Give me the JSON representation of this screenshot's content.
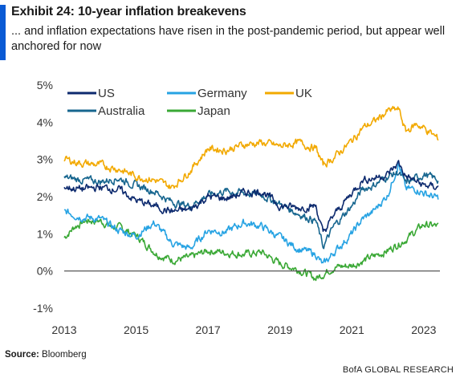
{
  "title": "Exhibit 24: 10-year inflation breakevens",
  "subtitle": "... and inflation expectations have risen in the post-pandemic period, but appear well anchored for now",
  "source_label": "Source:",
  "source_text": "Bloomberg",
  "brand": "BofA GLOBAL RESEARCH",
  "chart_data": {
    "type": "line",
    "title": "",
    "xlabel": "",
    "ylabel": "",
    "xlim": [
      2013.0,
      2023.45
    ],
    "ylim": [
      -1,
      5
    ],
    "y_ticks": [
      -1,
      0,
      1,
      2,
      3,
      4,
      5
    ],
    "y_tick_labels": [
      "-1%",
      "0%",
      "1%",
      "2%",
      "3%",
      "4%",
      "5%"
    ],
    "x_ticks": [
      2013,
      2015,
      2017,
      2019,
      2021,
      2023
    ],
    "x_tick_labels": [
      "2013",
      "2015",
      "2017",
      "2019",
      "2021",
      "2023"
    ],
    "grid": false,
    "legend_position": "top-left",
    "series": [
      {
        "name": "US",
        "color": "#0d2a6e",
        "x": [
          2013.0,
          2013.5,
          2014.0,
          2014.5,
          2015.0,
          2015.5,
          2016.0,
          2016.5,
          2017.0,
          2017.5,
          2018.0,
          2018.5,
          2019.0,
          2019.5,
          2020.0,
          2020.2,
          2020.5,
          2021.0,
          2021.3,
          2021.6,
          2022.0,
          2022.3,
          2022.5,
          2022.8,
          2023.0,
          2023.4
        ],
        "y": [
          2.25,
          2.2,
          2.25,
          2.2,
          1.9,
          1.75,
          1.6,
          1.65,
          2.0,
          1.95,
          2.1,
          2.15,
          1.75,
          1.7,
          1.75,
          1.0,
          1.5,
          2.1,
          2.45,
          2.5,
          2.6,
          2.9,
          2.55,
          2.4,
          2.3,
          2.25
        ]
      },
      {
        "name": "Germany",
        "color": "#27a3e3",
        "x": [
          2013.0,
          2013.5,
          2014.0,
          2014.5,
          2015.0,
          2015.5,
          2016.0,
          2016.5,
          2017.0,
          2017.5,
          2018.0,
          2018.5,
          2019.0,
          2019.5,
          2020.0,
          2020.2,
          2020.5,
          2021.0,
          2021.3,
          2021.6,
          2022.0,
          2022.3,
          2022.5,
          2022.8,
          2023.0,
          2023.4
        ],
        "y": [
          1.6,
          1.45,
          1.4,
          1.1,
          0.95,
          1.3,
          0.75,
          0.6,
          1.1,
          1.05,
          1.3,
          1.2,
          0.9,
          0.6,
          0.45,
          0.15,
          0.5,
          1.0,
          1.4,
          1.6,
          2.05,
          2.9,
          2.2,
          2.2,
          2.1,
          1.95
        ]
      },
      {
        "name": "UK",
        "color": "#f2a900",
        "x": [
          2013.0,
          2013.5,
          2014.0,
          2014.5,
          2015.0,
          2015.5,
          2016.0,
          2016.5,
          2017.0,
          2017.5,
          2018.0,
          2018.5,
          2019.0,
          2019.5,
          2020.0,
          2020.2,
          2020.5,
          2021.0,
          2021.3,
          2021.6,
          2022.0,
          2022.3,
          2022.5,
          2022.8,
          2023.0,
          2023.4
        ],
        "y": [
          3.0,
          2.9,
          2.85,
          2.75,
          2.55,
          2.45,
          2.25,
          2.7,
          3.3,
          3.25,
          3.4,
          3.45,
          3.35,
          3.45,
          3.3,
          2.85,
          3.05,
          3.5,
          3.85,
          4.0,
          4.3,
          4.35,
          3.75,
          3.95,
          3.85,
          3.55
        ]
      },
      {
        "name": "Australia",
        "color": "#17668f",
        "x": [
          2013.0,
          2013.5,
          2014.0,
          2014.5,
          2015.0,
          2015.5,
          2016.0,
          2016.5,
          2017.0,
          2017.5,
          2018.0,
          2018.5,
          2019.0,
          2019.5,
          2020.0,
          2020.2,
          2020.5,
          2021.0,
          2021.3,
          2021.6,
          2022.0,
          2022.3,
          2022.5,
          2022.8,
          2023.0,
          2023.4
        ],
        "y": [
          2.5,
          2.45,
          2.4,
          2.5,
          2.3,
          2.15,
          1.85,
          1.75,
          2.05,
          2.15,
          2.1,
          2.05,
          1.8,
          1.55,
          1.35,
          0.65,
          1.2,
          1.75,
          2.2,
          2.3,
          2.55,
          2.65,
          2.35,
          2.5,
          2.6,
          2.45
        ]
      },
      {
        "name": "Japan",
        "color": "#3aa835",
        "x": [
          2013.0,
          2013.3,
          2013.6,
          2014.0,
          2014.3,
          2014.6,
          2015.0,
          2015.3,
          2015.6,
          2016.0,
          2016.5,
          2017.0,
          2017.5,
          2018.0,
          2018.5,
          2019.0,
          2019.5,
          2020.0,
          2020.5,
          2021.0,
          2021.5,
          2022.0,
          2022.5,
          2023.0,
          2023.4
        ],
        "y": [
          0.9,
          1.2,
          1.35,
          1.35,
          1.2,
          1.15,
          0.95,
          0.7,
          0.45,
          0.3,
          0.35,
          0.55,
          0.5,
          0.45,
          0.5,
          0.2,
          0.05,
          -0.2,
          0.1,
          0.15,
          0.35,
          0.55,
          0.85,
          1.25,
          1.2
        ]
      }
    ]
  }
}
